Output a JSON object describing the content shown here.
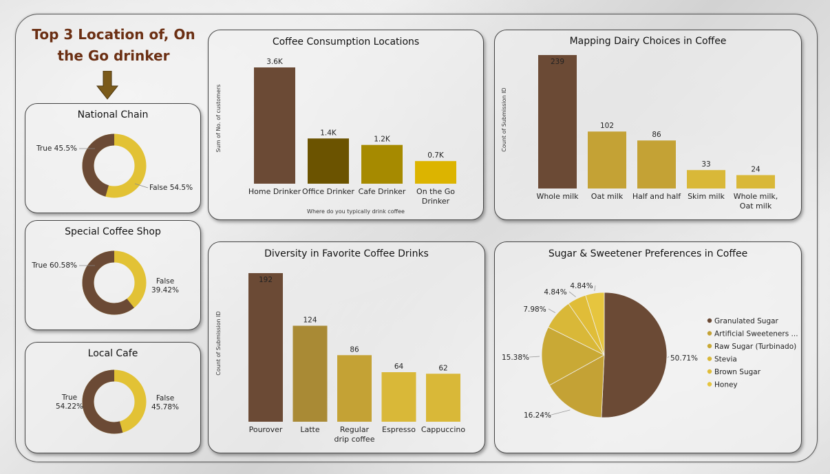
{
  "headline": "Top 3 Location of, On the Go drinker",
  "donuts": [
    {
      "title": "National Chain",
      "true_label": "True 45.5%",
      "false_label": "False 54.5%",
      "true_pct": 45.5,
      "true_lines": [
        "True 45.5%"
      ],
      "false_lines": [
        "False 54.5%"
      ]
    },
    {
      "title": "Special Coffee Shop",
      "true_label": "True 60.58%",
      "false_label": "False 39.42%",
      "true_pct": 60.58,
      "true_lines": [
        "True 60.58%"
      ],
      "false_lines": [
        "False",
        "39.42%"
      ]
    },
    {
      "title": "Local Cafe",
      "true_label": "True 54.22%",
      "false_label": "False 45.78%",
      "true_pct": 54.22,
      "true_lines": [
        "True",
        "54.22%"
      ],
      "false_lines": [
        "False",
        "45.78%"
      ]
    }
  ],
  "colors": {
    "brown": "#6b4a35",
    "gold": "#e2c235",
    "dark_olive": "#6b5300",
    "olive": "#a68a00",
    "yellow": "#dcb400",
    "mustard": "#a98a35",
    "mustard2": "#c4a235",
    "mustard3": "#d9b838"
  },
  "chart_data": [
    {
      "type": "bar",
      "title": "Coffee Consumption Locations",
      "categories": [
        "Home Drinker",
        "Office Drinker",
        "Cafe Drinker",
        "On the Go Drinker"
      ],
      "values": [
        3600,
        1400,
        1200,
        700
      ],
      "data_labels": [
        "3.6K",
        "1.4K",
        "1.2K",
        "0.7K"
      ],
      "xlabel": "Where do you typically drink coffee",
      "ylabel": "Sum of No. of customers"
    },
    {
      "type": "bar",
      "title": "Mapping Dairy Choices in Coffee",
      "categories": [
        "Whole milk",
        "Oat milk",
        "Half and half",
        "Skim milk",
        "Whole milk, Oat milk"
      ],
      "values": [
        239,
        102,
        86,
        33,
        24
      ],
      "data_labels": [
        "239",
        "102",
        "86",
        "33",
        "24"
      ],
      "xlabel": "",
      "ylabel": "Count of Submission ID"
    },
    {
      "type": "bar",
      "title": "Diversity in Favorite Coffee Drinks",
      "categories": [
        "Pourover",
        "Latte",
        "Regular drip coffee",
        "Espresso",
        "Cappuccino"
      ],
      "values": [
        192,
        124,
        86,
        64,
        62
      ],
      "data_labels": [
        "192",
        "124",
        "86",
        "64",
        "62"
      ],
      "xlabel": "",
      "ylabel": "Count of Submission ID"
    },
    {
      "type": "pie",
      "title": "Sugar & Sweetener Preferences in Coffee",
      "categories": [
        "Granulated Sugar",
        "Artificial Sweeteners ...",
        "Raw Sugar (Turbinado)",
        "Stevia",
        "Brown Sugar",
        "Honey"
      ],
      "values": [
        50.71,
        16.24,
        15.38,
        7.98,
        4.84,
        4.84
      ],
      "data_labels": [
        "50.71%",
        "16.24%",
        "15.38%",
        "7.98%",
        "4.84%",
        "4.84%"
      ],
      "legend": "right"
    }
  ]
}
